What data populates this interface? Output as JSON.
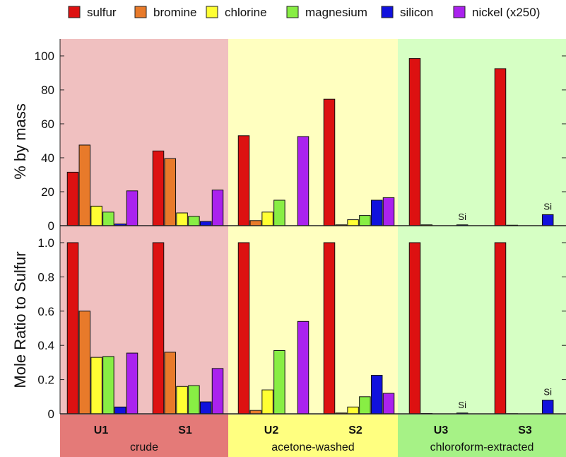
{
  "chart_data": [
    {
      "type": "bar",
      "panel": "top",
      "ylabel": "% by mass",
      "ylim": [
        0,
        105
      ],
      "yticks": [
        0,
        20,
        40,
        60,
        80,
        100
      ],
      "ytick_labels": [
        "0",
        "20",
        "40",
        "60",
        "80",
        "100"
      ],
      "categories": [
        "U1",
        "S1",
        "U2",
        "S2",
        "U3",
        "S3"
      ],
      "series": [
        {
          "name": "sulfur",
          "color": "#dd1111",
          "values": [
            31.5,
            44,
            53,
            74.5,
            98.5,
            92.5
          ]
        },
        {
          "name": "bromine",
          "color": "#e87a2a",
          "values": [
            47.5,
            39.5,
            3,
            0.5,
            0.5,
            0.3
          ]
        },
        {
          "name": "chlorine",
          "color": "#ffff33",
          "values": [
            11.5,
            7.5,
            8,
            3.5,
            0,
            0
          ]
        },
        {
          "name": "magnesium",
          "color": "#88ee44",
          "values": [
            8,
            5.5,
            15,
            6,
            0,
            0
          ]
        },
        {
          "name": "silicon",
          "color": "#1111dd",
          "values": [
            1,
            2.5,
            0,
            15,
            0.5,
            6.5
          ]
        },
        {
          "name": "nickel (x250)",
          "color": "#aa22ee",
          "values": [
            20.5,
            21,
            52.5,
            16.5,
            0,
            0
          ]
        }
      ],
      "annotations": [
        {
          "text": "Si",
          "category": "U3",
          "series": "silicon"
        },
        {
          "text": "Si",
          "category": "S3",
          "series": "silicon"
        }
      ]
    },
    {
      "type": "bar",
      "panel": "bottom",
      "ylabel": "Mole Ratio to Sulfur",
      "ylim": [
        0,
        1.05
      ],
      "yticks": [
        0,
        0.2,
        0.4,
        0.6,
        0.8,
        1.0
      ],
      "ytick_labels": [
        "0",
        "0.2",
        "0.4",
        "0.6",
        "0.8",
        "1.0"
      ],
      "categories": [
        "U1",
        "S1",
        "U2",
        "S2",
        "U3",
        "S3"
      ],
      "series": [
        {
          "name": "sulfur",
          "color": "#dd1111",
          "values": [
            1.0,
            1.0,
            1.0,
            1.0,
            1.0,
            1.0
          ]
        },
        {
          "name": "bromine",
          "color": "#e87a2a",
          "values": [
            0.6,
            0.36,
            0.02,
            0.005,
            0.002,
            0.001
          ]
        },
        {
          "name": "chlorine",
          "color": "#ffff33",
          "values": [
            0.33,
            0.16,
            0.14,
            0.04,
            0,
            0
          ]
        },
        {
          "name": "magnesium",
          "color": "#88ee44",
          "values": [
            0.335,
            0.165,
            0.37,
            0.1,
            0,
            0
          ]
        },
        {
          "name": "silicon",
          "color": "#1111dd",
          "values": [
            0.04,
            0.07,
            0,
            0.225,
            0.005,
            0.08
          ]
        },
        {
          "name": "nickel (x250)",
          "color": "#aa22ee",
          "values": [
            0.355,
            0.265,
            0.54,
            0.12,
            0,
            0
          ]
        }
      ],
      "annotations": [
        {
          "text": "Si",
          "category": "U3",
          "series": "silicon"
        },
        {
          "text": "Si",
          "category": "S3",
          "series": "silicon"
        }
      ]
    }
  ],
  "legend": {
    "placement": "top",
    "items": [
      "sulfur",
      "bromine",
      "chlorine",
      "magnesium",
      "silicon",
      "nickel (x250)"
    ]
  },
  "groups": [
    {
      "label": "crude",
      "categories": [
        "U1",
        "S1"
      ],
      "panel_color": "#f0c0c0",
      "label_color": "#e47a78"
    },
    {
      "label": "acetone-washed",
      "categories": [
        "U2",
        "S2"
      ],
      "panel_color": "#ffffc0",
      "label_color": "#ffff80"
    },
    {
      "label": "chloroform-extracted",
      "categories": [
        "U3",
        "S3"
      ],
      "panel_color": "#d6ffc4",
      "label_color": "#a6f286"
    }
  ]
}
